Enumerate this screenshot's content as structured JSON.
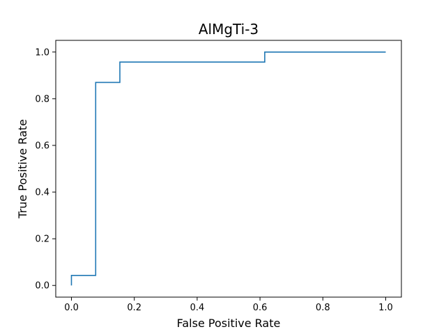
{
  "chart_data": {
    "type": "line",
    "title": "AlMgTi-3",
    "xlabel": "False Positive Rate",
    "ylabel": "True Positive Rate",
    "xlim": [
      -0.05,
      1.05
    ],
    "ylim": [
      -0.05,
      1.05
    ],
    "x_ticks": [
      "0.0",
      "0.2",
      "0.4",
      "0.6",
      "0.8",
      "1.0"
    ],
    "y_ticks": [
      "0.0",
      "0.2",
      "0.4",
      "0.6",
      "0.8",
      "1.0"
    ],
    "grid": false,
    "series": [
      {
        "color": "#1f77b4",
        "x": [
          0.0,
          0.0,
          0.077,
          0.077,
          0.154,
          0.154,
          0.615,
          0.615,
          1.0
        ],
        "y": [
          0.0,
          0.043,
          0.043,
          0.87,
          0.87,
          0.957,
          0.957,
          1.0,
          1.0
        ]
      }
    ]
  }
}
